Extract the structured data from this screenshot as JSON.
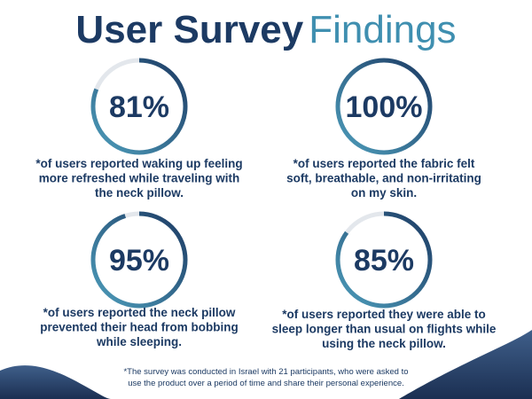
{
  "header": {
    "title_bold": "User Survey",
    "title_light": "Findings"
  },
  "stats": [
    {
      "value": 81,
      "label": "81%",
      "lines": [
        "*of users reported waking up feeling",
        "more refreshed while traveling with",
        "the neck pillow."
      ]
    },
    {
      "value": 100,
      "label": "100%",
      "lines": [
        "*of users reported the fabric felt",
        "soft, breathable, and non-irritating",
        "on my skin."
      ]
    },
    {
      "value": 95,
      "label": "95%",
      "lines": [
        "*of users reported the neck pillow",
        "prevented their head from bobbing",
        "while sleeping."
      ]
    },
    {
      "value": 85,
      "label": "85%",
      "lines": [
        "*of users reported they were able to",
        "sleep longer than usual on flights while",
        "using the neck pillow."
      ]
    }
  ],
  "footnote": [
    "*The survey was conducted in Israel with 21 participants, who were asked to",
    "use the product over a period of time and share their personal experience."
  ]
}
